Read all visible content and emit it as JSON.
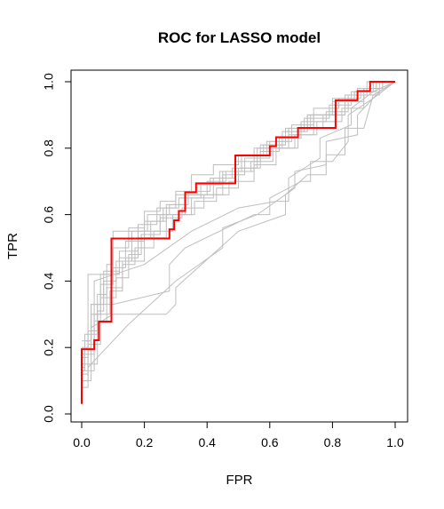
{
  "chart_data": {
    "type": "line",
    "title": "ROC for LASSO model",
    "xlabel": "FPR",
    "ylabel": "TPR",
    "xlim": [
      0,
      1
    ],
    "ylim": [
      0,
      1
    ],
    "x_ticks": [
      "0.0",
      "0.2",
      "0.4",
      "0.6",
      "0.8",
      "1.0"
    ],
    "y_ticks": [
      "0.0",
      "0.2",
      "0.4",
      "0.6",
      "0.8",
      "1.0"
    ],
    "grid": false,
    "legend": "none",
    "colors": {
      "main": "#ff0000",
      "background_curves": "#bebebe",
      "axes": "#000000"
    },
    "main_series": {
      "x": [
        0,
        0,
        0.04,
        0.04,
        0.055,
        0.055,
        0.095,
        0.095,
        0.28,
        0.28,
        0.295,
        0.295,
        0.31,
        0.31,
        0.33,
        0.33,
        0.365,
        0.365,
        0.49,
        0.49,
        0.6,
        0.6,
        0.62,
        0.62,
        0.69,
        0.69,
        0.81,
        0.81,
        0.88,
        0.88,
        0.92,
        0.92,
        1.0
      ],
      "y": [
        0.03,
        0.195,
        0.195,
        0.222,
        0.222,
        0.278,
        0.278,
        0.528,
        0.528,
        0.556,
        0.556,
        0.583,
        0.583,
        0.611,
        0.611,
        0.667,
        0.667,
        0.694,
        0.694,
        0.778,
        0.778,
        0.806,
        0.806,
        0.833,
        0.833,
        0.861,
        0.861,
        0.944,
        0.944,
        0.972,
        0.972,
        1.0,
        1.0
      ]
    },
    "background_series": [
      {
        "x": [
          0,
          0.02,
          0.02,
          0.05,
          0.05,
          0.08,
          0.08,
          0.1,
          0.1,
          0.15,
          0.15,
          0.2,
          0.2,
          0.25,
          0.25,
          0.3,
          0.3,
          0.35,
          0.35,
          0.42,
          0.42,
          0.5,
          0.5,
          0.58,
          0.58,
          0.65,
          0.65,
          0.72,
          0.72,
          0.8,
          0.8,
          0.87,
          0.87,
          0.93,
          0.93,
          1.0
        ],
        "y": [
          0.17,
          0.17,
          0.25,
          0.25,
          0.36,
          0.36,
          0.45,
          0.45,
          0.5,
          0.5,
          0.56,
          0.56,
          0.61,
          0.61,
          0.64,
          0.64,
          0.67,
          0.67,
          0.72,
          0.72,
          0.75,
          0.75,
          0.78,
          0.78,
          0.81,
          0.81,
          0.86,
          0.86,
          0.9,
          0.9,
          0.94,
          0.94,
          0.97,
          0.97,
          1.0,
          1.0
        ]
      },
      {
        "x": [
          0,
          0.01,
          0.01,
          0.03,
          0.03,
          0.06,
          0.06,
          0.12,
          0.12,
          0.18,
          0.18,
          0.22,
          0.22,
          0.27,
          0.27,
          0.33,
          0.33,
          0.4,
          0.4,
          0.46,
          0.46,
          0.54,
          0.54,
          0.61,
          0.61,
          0.68,
          0.68,
          0.75,
          0.75,
          0.83,
          0.83,
          0.9,
          0.9,
          0.95,
          0.95,
          1.0
        ],
        "y": [
          0.13,
          0.13,
          0.22,
          0.22,
          0.33,
          0.33,
          0.42,
          0.42,
          0.47,
          0.47,
          0.53,
          0.53,
          0.58,
          0.58,
          0.63,
          0.63,
          0.66,
          0.66,
          0.7,
          0.7,
          0.73,
          0.73,
          0.76,
          0.76,
          0.8,
          0.8,
          0.84,
          0.84,
          0.88,
          0.88,
          0.92,
          0.92,
          0.96,
          0.96,
          1.0,
          1.0
        ]
      },
      {
        "x": [
          0,
          0.03,
          0.03,
          0.06,
          0.06,
          0.1,
          0.1,
          0.14,
          0.14,
          0.2,
          0.2,
          0.26,
          0.26,
          0.31,
          0.31,
          0.38,
          0.38,
          0.45,
          0.45,
          0.52,
          0.52,
          0.6,
          0.6,
          0.67,
          0.67,
          0.74,
          0.74,
          0.82,
          0.82,
          0.89,
          0.89,
          0.94,
          0.94,
          1.0
        ],
        "y": [
          0.2,
          0.2,
          0.3,
          0.3,
          0.39,
          0.39,
          0.44,
          0.44,
          0.52,
          0.52,
          0.58,
          0.58,
          0.62,
          0.62,
          0.65,
          0.65,
          0.69,
          0.69,
          0.72,
          0.72,
          0.77,
          0.77,
          0.82,
          0.82,
          0.87,
          0.87,
          0.92,
          0.92,
          0.95,
          0.95,
          0.97,
          0.97,
          1.0,
          1.0
        ]
      },
      {
        "x": [
          0,
          0.02,
          0.02,
          0.04,
          0.04,
          0.09,
          0.09,
          0.13,
          0.13,
          0.17,
          0.17,
          0.23,
          0.23,
          0.29,
          0.29,
          0.36,
          0.36,
          0.43,
          0.43,
          0.5,
          0.5,
          0.57,
          0.57,
          0.63,
          0.63,
          0.7,
          0.7,
          0.78,
          0.78,
          0.85,
          0.85,
          0.91,
          0.91,
          1.0
        ],
        "y": [
          0.1,
          0.1,
          0.19,
          0.19,
          0.3,
          0.3,
          0.37,
          0.37,
          0.45,
          0.45,
          0.5,
          0.5,
          0.55,
          0.55,
          0.6,
          0.6,
          0.64,
          0.64,
          0.68,
          0.68,
          0.74,
          0.74,
          0.79,
          0.79,
          0.83,
          0.83,
          0.88,
          0.88,
          0.91,
          0.91,
          0.96,
          0.96,
          1.0,
          1.0
        ]
      },
      {
        "x": [
          0,
          0.01,
          0.01,
          0.05,
          0.05,
          0.07,
          0.07,
          0.11,
          0.11,
          0.16,
          0.16,
          0.21,
          0.21,
          0.28,
          0.28,
          0.34,
          0.34,
          0.41,
          0.41,
          0.48,
          0.48,
          0.56,
          0.56,
          0.64,
          0.64,
          0.71,
          0.71,
          0.79,
          0.79,
          0.86,
          0.86,
          0.92,
          0.92,
          1.0
        ],
        "y": [
          0.14,
          0.14,
          0.24,
          0.24,
          0.31,
          0.31,
          0.4,
          0.4,
          0.46,
          0.46,
          0.55,
          0.55,
          0.6,
          0.6,
          0.63,
          0.63,
          0.67,
          0.67,
          0.71,
          0.71,
          0.74,
          0.74,
          0.8,
          0.8,
          0.85,
          0.85,
          0.89,
          0.89,
          0.93,
          0.93,
          0.97,
          0.97,
          1.0,
          1.0
        ]
      },
      {
        "x": [
          0,
          0.03,
          0.03,
          0.07,
          0.07,
          0.12,
          0.12,
          0.18,
          0.18,
          0.24,
          0.24,
          0.3,
          0.3,
          0.37,
          0.37,
          0.44,
          0.44,
          0.51,
          0.51,
          0.59,
          0.59,
          0.66,
          0.66,
          0.73,
          0.73,
          0.81,
          0.81,
          0.88,
          0.88,
          0.94,
          0.94,
          1.0
        ],
        "y": [
          0.22,
          0.22,
          0.33,
          0.33,
          0.43,
          0.43,
          0.49,
          0.49,
          0.57,
          0.57,
          0.62,
          0.62,
          0.66,
          0.66,
          0.69,
          0.69,
          0.73,
          0.73,
          0.78,
          0.78,
          0.82,
          0.82,
          0.86,
          0.86,
          0.9,
          0.9,
          0.94,
          0.94,
          0.98,
          0.98,
          1.0,
          1.0
        ]
      },
      {
        "x": [
          0,
          0.02,
          0.02,
          0.06,
          0.06,
          0.11,
          0.11,
          0.15,
          0.15,
          0.19,
          0.19,
          0.25,
          0.25,
          0.32,
          0.32,
          0.39,
          0.39,
          0.47,
          0.47,
          0.55,
          0.55,
          0.62,
          0.62,
          0.69,
          0.69,
          0.77,
          0.77,
          0.84,
          0.84,
          0.9,
          0.9,
          0.96,
          0.96,
          1.0
        ],
        "y": [
          0.12,
          0.12,
          0.21,
          0.21,
          0.35,
          0.35,
          0.41,
          0.41,
          0.48,
          0.48,
          0.54,
          0.54,
          0.59,
          0.59,
          0.62,
          0.62,
          0.66,
          0.66,
          0.7,
          0.7,
          0.75,
          0.75,
          0.8,
          0.8,
          0.86,
          0.86,
          0.9,
          0.9,
          0.94,
          0.94,
          0.98,
          0.98,
          1.0,
          1.0
        ]
      },
      {
        "x": [
          0,
          0.04,
          0.04,
          0.08,
          0.08,
          0.13,
          0.13,
          0.2,
          0.2,
          0.27,
          0.27,
          0.35,
          0.35,
          0.42,
          0.42,
          0.49,
          0.49,
          0.57,
          0.57,
          0.65,
          0.65,
          0.72,
          0.72,
          0.8,
          0.8,
          0.87,
          0.87,
          0.93,
          0.93,
          1.0
        ],
        "y": [
          0.18,
          0.18,
          0.28,
          0.28,
          0.38,
          0.38,
          0.46,
          0.46,
          0.53,
          0.53,
          0.6,
          0.6,
          0.65,
          0.65,
          0.71,
          0.71,
          0.76,
          0.76,
          0.81,
          0.81,
          0.85,
          0.85,
          0.9,
          0.9,
          0.95,
          0.95,
          0.97,
          0.97,
          1.0,
          1.0
        ]
      },
      {
        "x": [
          0,
          0.02,
          0.02,
          0.1,
          0.1,
          0.25,
          0.25,
          0.33,
          0.33,
          0.45,
          0.45,
          0.55,
          0.55,
          0.66,
          0.66,
          0.74,
          0.74,
          0.84,
          0.84,
          0.92,
          0.92,
          1.0
        ],
        "y": [
          0.2,
          0.2,
          0.42,
          0.42,
          0.55,
          0.55,
          0.6,
          0.6,
          0.66,
          0.66,
          0.73,
          0.73,
          0.8,
          0.8,
          0.84,
          0.84,
          0.9,
          0.9,
          0.96,
          0.96,
          1.0,
          1.0
        ]
      },
      {
        "x": [
          0,
          0.05,
          0.05,
          0.1,
          0.28,
          0.28,
          0.33,
          0.55,
          0.6,
          0.6,
          0.7,
          0.73,
          0.73,
          0.8,
          0.85,
          0.85,
          0.93,
          1.0
        ],
        "y": [
          0.15,
          0.15,
          0.33,
          0.33,
          0.37,
          0.45,
          0.5,
          0.6,
          0.6,
          0.65,
          0.7,
          0.7,
          0.76,
          0.76,
          0.82,
          0.9,
          0.95,
          1.0
        ]
      },
      {
        "x": [
          0,
          0.03,
          0.03,
          0.1,
          0.27,
          0.3,
          0.3,
          0.5,
          0.65,
          0.65,
          0.72,
          0.78,
          0.78,
          0.84,
          0.84,
          0.9,
          0.93,
          1.0
        ],
        "y": [
          0.1,
          0.1,
          0.26,
          0.3,
          0.3,
          0.33,
          0.38,
          0.55,
          0.6,
          0.66,
          0.72,
          0.72,
          0.78,
          0.78,
          0.86,
          0.86,
          0.96,
          1.0
        ]
      },
      {
        "x": [
          0,
          0.02,
          0.02,
          0.08,
          0.15,
          0.3,
          0.45,
          0.45,
          0.56,
          0.68,
          0.68,
          0.78,
          0.78,
          0.88,
          0.88,
          0.95,
          1.0
        ],
        "y": [
          0.08,
          0.08,
          0.14,
          0.2,
          0.27,
          0.4,
          0.5,
          0.56,
          0.6,
          0.68,
          0.73,
          0.75,
          0.82,
          0.84,
          0.9,
          0.97,
          1.0
        ]
      },
      {
        "x": [
          0,
          0.04,
          0.04,
          0.2,
          0.35,
          0.5,
          0.62,
          0.66,
          0.66,
          0.76,
          0.76,
          0.86,
          0.86,
          0.93,
          1.0
        ],
        "y": [
          0.13,
          0.13,
          0.4,
          0.45,
          0.55,
          0.62,
          0.64,
          0.64,
          0.71,
          0.77,
          0.83,
          0.87,
          0.92,
          0.97,
          1.0
        ]
      }
    ]
  }
}
